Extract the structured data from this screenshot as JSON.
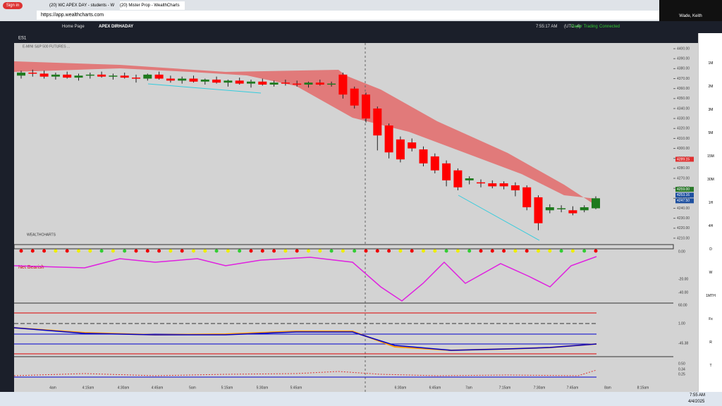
{
  "browser": {
    "tabs": [
      "(20) WC APEX DAY - students - W",
      "(20) Mister Prop - WealthCharts"
    ],
    "url": "https://app.wealthcharts.com",
    "sign_in": "Sign in"
  },
  "user": "Wade, Keith",
  "toolbar": {
    "tabs": [
      "Home Page",
      "APEX DIRHADAY"
    ],
    "clock": "7:55:17 AM",
    "tz": "(UTC -4)",
    "mode": "Paper Trading",
    "status": "Connected"
  },
  "chart": {
    "symbol": "ES1",
    "legend": "E-MINI S&P 500 FUTURES ...",
    "brand": "WEALTHCHARTS",
    "signal": "Net Bearish",
    "candles": [
      [
        4373,
        4378,
        4370,
        4376
      ],
      [
        4376,
        4379,
        4372,
        4375
      ],
      [
        4375,
        4378,
        4370,
        4372
      ],
      [
        4372,
        4376,
        4369,
        4374
      ],
      [
        4374,
        4377,
        4370,
        4371
      ],
      [
        4371,
        4375,
        4368,
        4373
      ],
      [
        4373,
        4376,
        4370,
        4374
      ],
      [
        4374,
        4377,
        4371,
        4372
      ],
      [
        4372,
        4375,
        4369,
        4373
      ],
      [
        4373,
        4376,
        4370,
        4371
      ],
      [
        4371,
        4374,
        4366,
        4370
      ],
      [
        4370,
        4375,
        4368,
        4374
      ],
      [
        4374,
        4377,
        4369,
        4370
      ],
      [
        4370,
        4373,
        4366,
        4368
      ],
      [
        4368,
        4372,
        4365,
        4370
      ],
      [
        4370,
        4373,
        4366,
        4367
      ],
      [
        4367,
        4370,
        4364,
        4369
      ],
      [
        4369,
        4372,
        4365,
        4366
      ],
      [
        4366,
        4369,
        4362,
        4368
      ],
      [
        4368,
        4371,
        4364,
        4365
      ],
      [
        4365,
        4369,
        4361,
        4367
      ],
      [
        4367,
        4370,
        4363,
        4364
      ],
      [
        4364,
        4368,
        4362,
        4366
      ],
      [
        4366,
        4369,
        4363,
        4365
      ],
      [
        4365,
        4368,
        4362,
        4364
      ],
      [
        4364,
        4367,
        4361,
        4366
      ],
      [
        4366,
        4369,
        4363,
        4364
      ],
      [
        4364,
        4367,
        4362,
        4365
      ],
      [
        4374,
        4376,
        4350,
        4354
      ],
      [
        4360,
        4362,
        4340,
        4343
      ],
      [
        4354,
        4356,
        4326,
        4330
      ],
      [
        4340,
        4342,
        4298,
        4313
      ],
      [
        4323,
        4325,
        4290,
        4296
      ],
      [
        4309,
        4312,
        4286,
        4289
      ],
      [
        4306,
        4310,
        4297,
        4300
      ],
      [
        4299,
        4302,
        4282,
        4285
      ],
      [
        4292,
        4295,
        4275,
        4278
      ],
      [
        4285,
        4288,
        4262,
        4268
      ],
      [
        4278,
        4280,
        4258,
        4261
      ],
      [
        4268,
        4272,
        4264,
        4270
      ],
      [
        4266,
        4269,
        4261,
        4265
      ],
      [
        4265,
        4268,
        4260,
        4262
      ],
      [
        4265,
        4267,
        4259,
        4262
      ],
      [
        4263,
        4266,
        4252,
        4258
      ],
      [
        4261,
        4263,
        4238,
        4241
      ],
      [
        4251,
        4253,
        4218,
        4225
      ],
      [
        4238,
        4244,
        4235,
        4241
      ],
      [
        4240,
        4243,
        4236,
        4240
      ],
      [
        4238,
        4242,
        4233,
        4235
      ],
      [
        4238,
        4243,
        4236,
        4241
      ],
      [
        4240,
        4252,
        4239,
        4250
      ]
    ],
    "up_color": "#1e7a1e",
    "down_color": "#ff0000",
    "ylim": [
      4405,
      4205
    ],
    "yticks": [
      {
        "value": 4400,
        "label": "4400.00"
      },
      {
        "value": 4390,
        "label": "4390.00"
      },
      {
        "value": 4380,
        "label": "4380.00"
      },
      {
        "value": 4370,
        "label": "4370.00"
      },
      {
        "value": 4360,
        "label": "4360.00"
      },
      {
        "value": 4350,
        "label": "4350.00"
      },
      {
        "value": 4340,
        "label": "4340.00"
      },
      {
        "value": 4330,
        "label": "4330.00"
      },
      {
        "value": 4320,
        "label": "4320.00"
      },
      {
        "value": 4310,
        "label": "4310.00"
      },
      {
        "value": 4300,
        "label": "4300.00"
      },
      {
        "value": 4290,
        "label": "4290.00"
      },
      {
        "value": 4280,
        "label": "4280.00"
      },
      {
        "value": 4270,
        "label": "4270.00"
      },
      {
        "value": 4260,
        "label": "4260.00"
      },
      {
        "value": 4250,
        "label": "4250.00"
      },
      {
        "value": 4240,
        "label": "4240.00"
      },
      {
        "value": 4230,
        "label": "4230.00"
      },
      {
        "value": 4220,
        "label": "4220.00"
      },
      {
        "value": 4210,
        "label": "4210.00"
      }
    ],
    "price_flags": [
      {
        "value": 4289.15,
        "label": "4289.15",
        "color": "#e03030"
      },
      {
        "value": 4259,
        "label": "4259.00",
        "color": "#2a7a2a"
      },
      {
        "value": 4253.16,
        "label": "4253.16",
        "color": "#1e50a0"
      },
      {
        "value": 4247.5,
        "label": "4247.50",
        "color": "#1e50a0"
      }
    ],
    "xticks": [
      "4am",
      "4:15am",
      "4:30am",
      "4:45am",
      "5am",
      "5:15am",
      "5:30am",
      "5:45am",
      "6:30am",
      "6:45am",
      "7am",
      "7:15am",
      "7:30am",
      "7:45am",
      "8am",
      "8:15am"
    ],
    "indicator_labels": [
      "0.00",
      "-20.00",
      "-40.00",
      "60.00",
      "1.00",
      "-45.38",
      "0.50",
      "0.34",
      "0.25"
    ]
  },
  "timeframes": [
    "1M",
    "2M",
    "3M",
    "5M",
    "15M",
    "30M",
    "1H",
    "4H",
    "D",
    "W",
    "1MTH",
    "Fx",
    "R",
    "T"
  ],
  "taskbar": {
    "time": "7:55 AM",
    "date": "4/4/2025"
  }
}
